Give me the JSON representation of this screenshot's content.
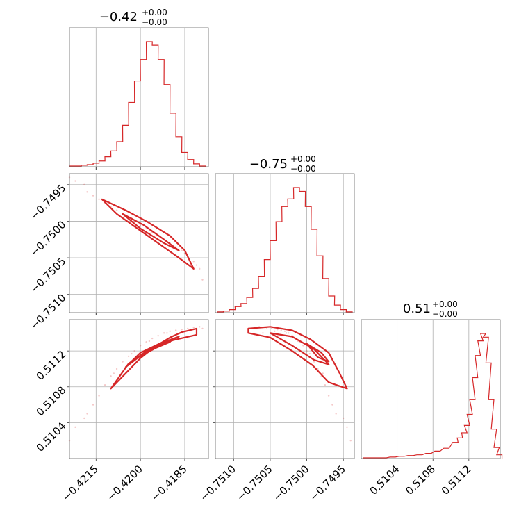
{
  "chart_data": {
    "type": "corner",
    "color": "#d62728",
    "grid": true,
    "parameters": [
      {
        "title_main": "−0.42",
        "title_plus": "+0.00",
        "title_minus": "−0.00",
        "range": [
          -0.4224,
          -0.4177
        ],
        "ticks": [
          -0.4215,
          -0.42,
          -0.4185
        ],
        "tick_labels": [
          "−0.4215",
          "−0.4200",
          "−0.4185"
        ],
        "hist_x": [
          -0.4223,
          -0.4221,
          -0.4219,
          -0.4217,
          -0.4215,
          -0.4213,
          -0.4211,
          -0.4209,
          -0.4207,
          -0.4205,
          -0.4203,
          -0.4201,
          -0.4199,
          -0.4197,
          -0.4195,
          -0.4193,
          -0.4191,
          -0.4189,
          -0.4187,
          -0.4185,
          -0.4183,
          -0.4181,
          -0.4179
        ],
        "hist_y": [
          1,
          1,
          2,
          3,
          5,
          8,
          14,
          22,
          35,
          58,
          90,
          120,
          150,
          175,
          170,
          150,
          115,
          75,
          42,
          20,
          10,
          4,
          1
        ]
      },
      {
        "title_main": "−0.75",
        "title_plus": "+0.00",
        "title_minus": "−0.00",
        "range": [
          -0.75125,
          -0.74935
        ],
        "ticks": [
          -0.751,
          -0.7505,
          -0.75,
          -0.7495
        ],
        "tick_labels": [
          "−0.7510",
          "−0.7505",
          "−0.7500",
          "−0.7495"
        ],
        "hist_x": [
          -0.75118,
          -0.7511,
          -0.75102,
          -0.75094,
          -0.75086,
          -0.75078,
          -0.7507,
          -0.75062,
          -0.75054,
          -0.75046,
          -0.75038,
          -0.7503,
          -0.75022,
          -0.75014,
          -0.75006,
          -0.74998,
          -0.7499,
          -0.74982,
          -0.74974,
          -0.74966,
          -0.74958,
          -0.7495,
          -0.74942
        ],
        "hist_y": [
          1,
          2,
          4,
          8,
          12,
          20,
          32,
          48,
          70,
          95,
          120,
          140,
          150,
          165,
          160,
          140,
          110,
          75,
          45,
          22,
          10,
          4,
          1
        ]
      },
      {
        "title_main": "0.51",
        "title_plus": "+0.00",
        "title_minus": "−0.00",
        "range": [
          0.51,
          0.51155
        ],
        "ticks": [
          0.5104,
          0.5108,
          0.5112
        ],
        "tick_labels": [
          "0.5104",
          "0.5108",
          "0.5112"
        ],
        "hist_x": [
          0.51005,
          0.51015,
          0.51025,
          0.51035,
          0.51045,
          0.51055,
          0.51065,
          0.51075,
          0.51085,
          0.51095,
          0.51105,
          0.5111,
          0.51115,
          0.51118,
          0.51121,
          0.51124,
          0.51127,
          0.5113,
          0.51133,
          0.51136,
          0.51139,
          0.51142,
          0.51145,
          0.51148,
          0.51151,
          0.51154
        ],
        "hist_y": [
          1,
          1,
          1,
          2,
          3,
          4,
          5,
          7,
          10,
          14,
          22,
          28,
          35,
          45,
          60,
          80,
          110,
          140,
          160,
          170,
          165,
          130,
          80,
          40,
          15,
          5
        ]
      }
    ],
    "scatter_samples": [
      [
        -0.4218,
        -0.7496,
        0.5105
      ],
      [
        -0.4216,
        -0.74965,
        0.5106
      ],
      [
        -0.4214,
        -0.7497,
        0.5107
      ],
      [
        -0.4212,
        -0.74975,
        0.51082
      ],
      [
        -0.421,
        -0.7498,
        0.51092
      ],
      [
        -0.4208,
        -0.74985,
        0.511
      ],
      [
        -0.4206,
        -0.7499,
        0.51108
      ],
      [
        -0.4204,
        -0.74995,
        0.51114
      ],
      [
        -0.4202,
        -0.75,
        0.5112
      ],
      [
        -0.42,
        -0.75005,
        0.51126
      ],
      [
        -0.4198,
        -0.7501,
        0.5113
      ],
      [
        -0.4196,
        -0.75015,
        0.51134
      ],
      [
        -0.4194,
        -0.7502,
        0.51137
      ],
      [
        -0.4192,
        -0.75025,
        0.5114
      ],
      [
        -0.419,
        -0.7503,
        0.51142
      ],
      [
        -0.4188,
        -0.75035,
        0.51143
      ],
      [
        -0.4186,
        -0.7504,
        0.51144
      ],
      [
        -0.4184,
        -0.75048,
        0.51145
      ],
      [
        -0.4182,
        -0.75055,
        0.51146
      ],
      [
        -0.418,
        -0.75065,
        0.51147
      ],
      [
        -0.4222,
        -0.74945,
        0.51035
      ],
      [
        -0.4224,
        -0.7494,
        0.5102
      ],
      [
        -0.4219,
        -0.7495,
        0.51045
      ],
      [
        -0.4181,
        -0.7506,
        0.5114
      ],
      [
        -0.4179,
        -0.7508,
        0.51145
      ],
      [
        -0.4209,
        -0.74978,
        0.51095
      ],
      [
        -0.4197,
        -0.75012,
        0.51131
      ],
      [
        -0.4203,
        -0.74996,
        0.51117
      ],
      [
        -0.4191,
        -0.75028,
        0.5114
      ],
      [
        -0.4185,
        -0.75044,
        0.51142
      ]
    ],
    "contours": {
      "p01": [
        [
          [
            -0.4213,
            -0.7497
          ],
          [
            -0.4205,
            -0.74985
          ],
          [
            -0.4198,
            -0.75
          ],
          [
            -0.419,
            -0.7502
          ],
          [
            -0.4185,
            -0.7504
          ],
          [
            -0.4182,
            -0.75065
          ],
          [
            -0.4187,
            -0.7505
          ],
          [
            -0.4194,
            -0.7503
          ],
          [
            -0.4201,
            -0.7501
          ],
          [
            -0.4208,
            -0.7499
          ],
          [
            -0.4213,
            -0.7497
          ]
        ],
        [
          [
            -0.4206,
            -0.7499
          ],
          [
            -0.4199,
            -0.75005
          ],
          [
            -0.4192,
            -0.75025
          ],
          [
            -0.4187,
            -0.7504
          ],
          [
            -0.4192,
            -0.7503
          ],
          [
            -0.42,
            -0.7501
          ],
          [
            -0.4206,
            -0.7499
          ]
        ]
      ],
      "p02": [
        [
          [
            -0.421,
            0.51078
          ],
          [
            -0.4205,
            0.51095
          ],
          [
            -0.42,
            0.51112
          ],
          [
            -0.4195,
            0.51125
          ],
          [
            -0.419,
            0.51135
          ],
          [
            -0.4186,
            0.51141
          ],
          [
            -0.4181,
            0.51145
          ],
          [
            -0.4181,
            0.51138
          ],
          [
            -0.4189,
            0.51132
          ],
          [
            -0.4197,
            0.51122
          ],
          [
            -0.4204,
            0.51106
          ],
          [
            -0.421,
            0.51078
          ]
        ],
        [
          [
            -0.4205,
            0.51102
          ],
          [
            -0.4199,
            0.51117
          ],
          [
            -0.4193,
            0.51127
          ],
          [
            -0.4187,
            0.51136
          ],
          [
            -0.4193,
            0.51129
          ],
          [
            -0.42,
            0.51118
          ],
          [
            -0.4205,
            0.51102
          ]
        ],
        [
          [
            -0.42,
            0.51114
          ],
          [
            -0.4195,
            0.51123
          ],
          [
            -0.419,
            0.5113
          ],
          [
            -0.4195,
            0.51125
          ],
          [
            -0.42,
            0.51114
          ]
        ]
      ],
      "p12": [
        [
          [
            -0.7508,
            0.51145
          ],
          [
            -0.7505,
            0.51147
          ],
          [
            -0.7502,
            0.51143
          ],
          [
            -0.74995,
            0.51133
          ],
          [
            -0.7497,
            0.51118
          ],
          [
            -0.74955,
            0.51095
          ],
          [
            -0.74945,
            0.51078
          ],
          [
            -0.7497,
            0.51085
          ],
          [
            -0.74992,
            0.51104
          ],
          [
            -0.7502,
            0.5112
          ],
          [
            -0.7505,
            0.51135
          ],
          [
            -0.7508,
            0.5114
          ],
          [
            -0.7508,
            0.51145
          ]
        ],
        [
          [
            -0.7505,
            0.5114
          ],
          [
            -0.7502,
            0.51136
          ],
          [
            -0.7499,
            0.51122
          ],
          [
            -0.7497,
            0.51105
          ],
          [
            -0.7499,
            0.5111
          ],
          [
            -0.7502,
            0.51126
          ],
          [
            -0.7505,
            0.5114
          ]
        ],
        [
          [
            -0.75,
            0.51128
          ],
          [
            -0.7498,
            0.51118
          ],
          [
            -0.7497,
            0.51108
          ],
          [
            -0.74985,
            0.51113
          ],
          [
            -0.75,
            0.51128
          ]
        ]
      ]
    }
  }
}
